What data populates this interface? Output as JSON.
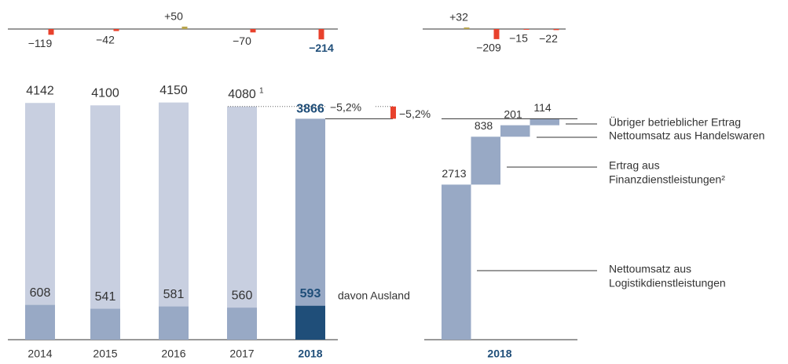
{
  "chart_data": [
    {
      "type": "change",
      "values": [
        -119,
        -42,
        50,
        -70,
        -214
      ],
      "value_labels": [
        "−119",
        "−42",
        "+50",
        "−70",
        "−214"
      ],
      "ylim": [
        -600,
        600
      ],
      "color_positive": "#b8a44c",
      "color_negative": "#e8412c",
      "highlight": 4,
      "highlight_color": "#1f4e79"
    },
    {
      "type": "overlay",
      "categories": [
        "2014",
        "2015",
        "2016",
        "2017",
        "2018"
      ],
      "ylim": [
        0,
        4200
      ],
      "highlight": 4,
      "highlight_color": "#1f4e79",
      "series": [
        {
          "values": [
            4142,
            4100,
            4150,
            4080,
            3866
          ],
          "footnotes": [
            null,
            null,
            null,
            "1",
            null
          ],
          "colors": [
            "#c8cfe0",
            "#c8cfe0",
            "#c8cfe0",
            "#c8cfe0",
            "#98a9c5"
          ]
        },
        {
          "name": "davon Ausland",
          "values": [
            608,
            541,
            581,
            560,
            593
          ],
          "colors": [
            "#98a9c5",
            "#98a9c5",
            "#98a9c5",
            "#98a9c5",
            "#1f4e79"
          ]
        }
      ],
      "annotations": [
        "−5,2%"
      ],
      "change_color": "#e8412c"
    },
    {
      "type": "waterfall",
      "xlabel": "2018",
      "ylim": [
        0,
        4200
      ],
      "color": "#98a9c5",
      "highlight_color": "#1f4e79",
      "categories": [
        [
          "Nettoumsatz aus",
          "Logistikdienstleistungen"
        ],
        [
          "Ertrag aus",
          "Finanzdienstleistungen²"
        ],
        [
          "Nettoumsatz aus Handelswaren"
        ],
        [
          "Übriger betrieblicher Ertrag"
        ]
      ],
      "values": [
        2713,
        838,
        201,
        114
      ],
      "annotations": [
        "−5,2%"
      ]
    },
    {
      "type": "change",
      "values": [
        32,
        -209,
        -15,
        -22
      ],
      "value_labels": [
        "+32",
        "−209",
        "−15",
        "−22"
      ],
      "ylim": [
        -600,
        600
      ],
      "color_positive": "#b8a44c",
      "color_negative": "#e8412c"
    }
  ]
}
